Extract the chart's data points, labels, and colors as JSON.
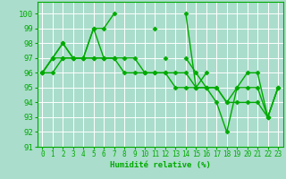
{
  "x": [
    0,
    1,
    2,
    3,
    4,
    5,
    6,
    7,
    8,
    9,
    10,
    11,
    12,
    13,
    14,
    15,
    16,
    17,
    18,
    19,
    20,
    21,
    22,
    23
  ],
  "series": [
    [
      96,
      97,
      98,
      97,
      97,
      99,
      99,
      100,
      null,
      null,
      null,
      99,
      null,
      null,
      100,
      95,
      96,
      null,
      null,
      null,
      null,
      null,
      null,
      null
    ],
    [
      96,
      97,
      98,
      97,
      97,
      99,
      97,
      97,
      null,
      null,
      96,
      null,
      97,
      null,
      97,
      96,
      95,
      95,
      94,
      95,
      96,
      96,
      93,
      95
    ],
    [
      96,
      97,
      97,
      97,
      97,
      97,
      97,
      97,
      97,
      97,
      96,
      96,
      96,
      96,
      96,
      95,
      95,
      95,
      94,
      94,
      94,
      94,
      93,
      95
    ],
    [
      96,
      96,
      97,
      97,
      97,
      97,
      97,
      97,
      96,
      96,
      96,
      96,
      96,
      95,
      95,
      95,
      95,
      94,
      92,
      95,
      95,
      95,
      93,
      95
    ]
  ],
  "line_color": "#00aa00",
  "marker": "D",
  "markersize": 2.5,
  "linewidth": 1.0,
  "bg_color": "#aaddcc",
  "grid_color": "#ffffff",
  "xlabel": "Humidité relative (%)",
  "ylim": [
    91,
    100.8
  ],
  "yticks": [
    91,
    92,
    93,
    94,
    95,
    96,
    97,
    98,
    99,
    100
  ],
  "xlim": [
    -0.5,
    23.5
  ],
  "xticks": [
    0,
    1,
    2,
    3,
    4,
    5,
    6,
    7,
    8,
    9,
    10,
    11,
    12,
    13,
    14,
    15,
    16,
    17,
    18,
    19,
    20,
    21,
    22,
    23
  ]
}
